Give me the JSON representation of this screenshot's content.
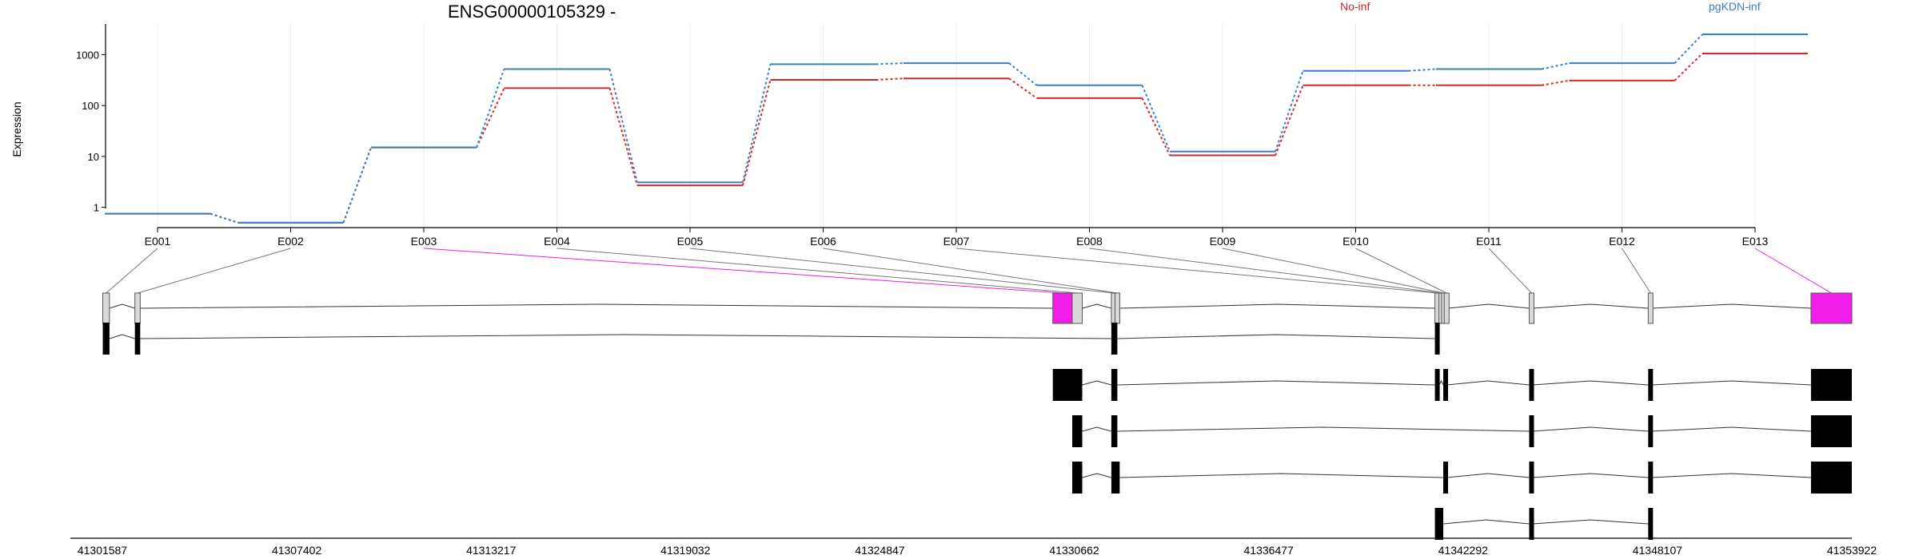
{
  "chart_data": {
    "type": "line",
    "title": "ENSG00000105329 -",
    "ylabel": "Expression",
    "y_scale": "log",
    "ylim": [
      0.4,
      3000
    ],
    "y_ticks": [
      1,
      10,
      100,
      1000
    ],
    "y_tick_labels": [
      "1",
      "10",
      "100",
      "1000"
    ],
    "grid": "vertical-light",
    "legend_placement": "top",
    "categories": [
      "E001",
      "E002",
      "E003",
      "E004",
      "E005",
      "E006",
      "E007",
      "E008",
      "E009",
      "E010",
      "E011",
      "E012",
      "E013"
    ],
    "series": [
      {
        "name": "No-inf",
        "color": "#d62728",
        "values": [
          0.75,
          0.5,
          15,
          220,
          2.7,
          320,
          340,
          140,
          10.5,
          250,
          250,
          310,
          1050
        ]
      },
      {
        "name": "pgKDN-inf",
        "color": "#3a7ec4",
        "values": [
          0.75,
          0.5,
          15,
          520,
          3.1,
          650,
          680,
          250,
          12.5,
          480,
          520,
          680,
          2500
        ]
      }
    ],
    "gene_model": {
      "highlight_color": "#f01ee8",
      "coordinate_range": [
        41301587,
        41353922
      ],
      "coordinate_ticks": [
        "41301587",
        "41307402",
        "41313217",
        "41319032",
        "41324847",
        "41330662",
        "41336477",
        "41342292",
        "41348107",
        "41353922"
      ],
      "exons": [
        {
          "id": "E001",
          "start": 41301600,
          "end": 41301800,
          "highlight": false
        },
        {
          "id": "E002",
          "start": 41302560,
          "end": 41302720,
          "highlight": false
        },
        {
          "id": "E003",
          "start": 41330020,
          "end": 41330600,
          "highlight": true
        },
        {
          "id": "E004",
          "start": 41330600,
          "end": 41330900,
          "highlight": false
        },
        {
          "id": "E005",
          "start": 41331770,
          "end": 41331880,
          "highlight": false
        },
        {
          "id": "E006",
          "start": 41331880,
          "end": 41332020,
          "highlight": false
        },
        {
          "id": "E007",
          "start": 41341450,
          "end": 41341570,
          "highlight": false
        },
        {
          "id": "E008",
          "start": 41341570,
          "end": 41341650,
          "highlight": false
        },
        {
          "id": "E009",
          "start": 41341650,
          "end": 41341730,
          "highlight": false
        },
        {
          "id": "E010",
          "start": 41341730,
          "end": 41341840,
          "highlight": false
        },
        {
          "id": "E011",
          "start": 41344270,
          "end": 41344380,
          "highlight": false
        },
        {
          "id": "E012",
          "start": 41347830,
          "end": 41347940,
          "highlight": false
        },
        {
          "id": "E013",
          "start": 41352700,
          "end": 41353922,
          "highlight": true
        }
      ],
      "transcripts": [
        [
          [
            41301600,
            41301800
          ],
          [
            41302560,
            41302720
          ],
          [
            41331770,
            41331950
          ],
          [
            41341450,
            41341580
          ]
        ],
        [
          [
            41330020,
            41330900
          ],
          [
            41331770,
            41331950
          ],
          [
            41341450,
            41341580
          ],
          [
            41341700,
            41341800
          ],
          [
            41344270,
            41344380
          ],
          [
            41347830,
            41347940
          ],
          [
            41352700,
            41353922
          ]
        ],
        [
          [
            41330600,
            41330900
          ],
          [
            41331770,
            41331950
          ],
          [
            41344270,
            41344380
          ],
          [
            41347830,
            41347940
          ],
          [
            41352700,
            41353922
          ]
        ],
        [
          [
            41330600,
            41330900
          ],
          [
            41331770,
            41332020
          ],
          [
            41341700,
            41341800
          ],
          [
            41344270,
            41344380
          ],
          [
            41347830,
            41347940
          ],
          [
            41352700,
            41353922
          ]
        ],
        [
          [
            41341450,
            41341700
          ],
          [
            41344270,
            41344380
          ],
          [
            41347830,
            41347940
          ]
        ]
      ]
    }
  }
}
